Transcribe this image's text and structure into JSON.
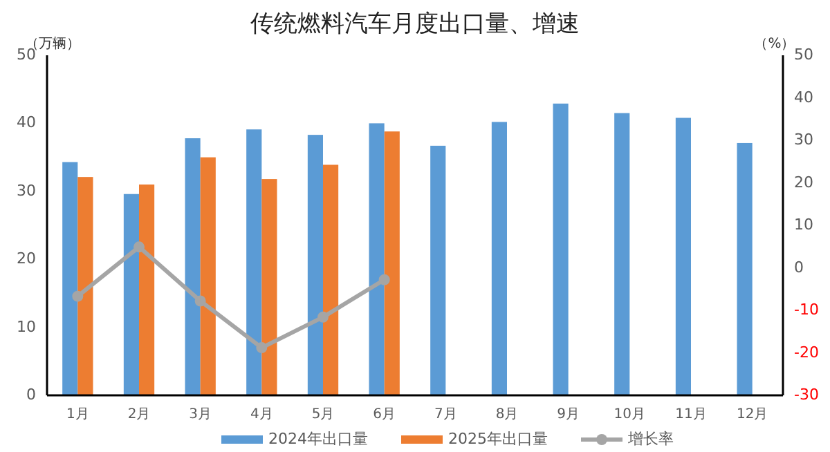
{
  "chart_data": {
    "type": "bar",
    "title": "传统燃料汽车月度出口量、增速",
    "ylabel": "（万辆）",
    "y2label": "（%）",
    "categories": [
      "1月",
      "2月",
      "3月",
      "4月",
      "5月",
      "6月",
      "7月",
      "8月",
      "9月",
      "10月",
      "11月",
      "12月"
    ],
    "series": [
      {
        "name": "2024年出口量",
        "color": "#5b9bd5",
        "values": [
          34.3,
          29.6,
          37.8,
          39.1,
          38.3,
          40.0,
          36.7,
          40.2,
          42.9,
          41.5,
          40.8,
          37.1
        ]
      },
      {
        "name": "2025年出口量",
        "color": "#ed7d31",
        "values": [
          32.1,
          31.0,
          35.0,
          31.8,
          33.9,
          38.8,
          null,
          null,
          null,
          null,
          null,
          null
        ]
      },
      {
        "name": "增长率",
        "type": "line",
        "axis": "y2",
        "color": "#a5a5a5",
        "marker": "circle",
        "values": [
          -6.7,
          4.9,
          -7.8,
          -18.8,
          -11.6,
          -2.8,
          null,
          null,
          null,
          null,
          null,
          null
        ]
      }
    ],
    "ylim": [
      0,
      50
    ],
    "yticks": [
      0,
      10,
      20,
      30,
      40,
      50
    ],
    "y2lim": [
      -30,
      50
    ],
    "y2ticks": [
      -30,
      -20,
      -10,
      0,
      10,
      20,
      30,
      40,
      50
    ],
    "legend": "bottom",
    "grid": false
  }
}
